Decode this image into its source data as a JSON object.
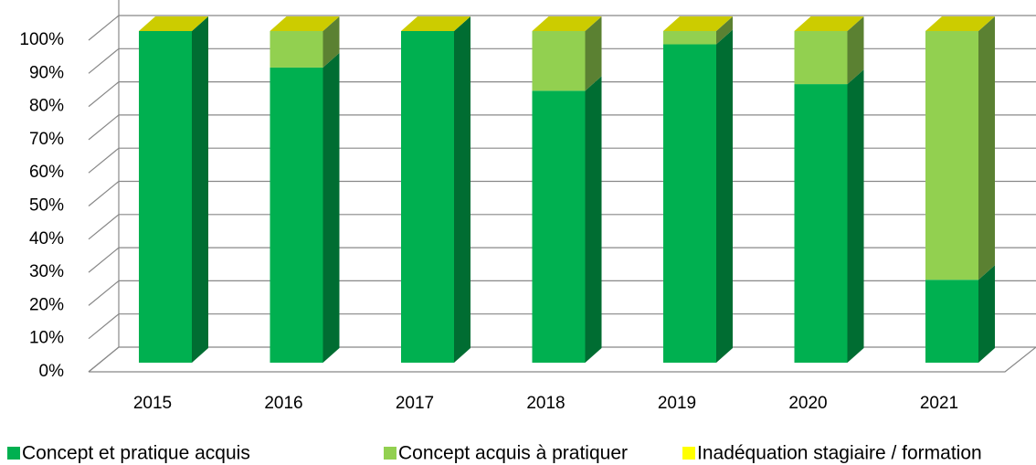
{
  "chart_data": {
    "type": "bar3d_stacked",
    "categories": [
      "2015",
      "2016",
      "2017",
      "2018",
      "2019",
      "2020",
      "2021"
    ],
    "series": [
      {
        "name": "Concept et pratique acquis",
        "color": "#00b050",
        "values": [
          100,
          89,
          100,
          82,
          96,
          84,
          25
        ]
      },
      {
        "name": "Concept acquis à pratiquer",
        "color": "#92d050",
        "values": [
          0,
          11,
          0,
          18,
          4,
          16,
          75
        ]
      },
      {
        "name": "Inadéquation stagiaire / formation",
        "color": "#ffff00",
        "values": [
          0,
          0,
          0,
          0,
          0,
          0,
          0
        ]
      }
    ],
    "ylim": [
      0,
      100
    ],
    "yticks": [
      {
        "value": 0,
        "label": "0%"
      },
      {
        "value": 10,
        "label": "10%"
      },
      {
        "value": 20,
        "label": "20%"
      },
      {
        "value": 30,
        "label": "30%"
      },
      {
        "value": 40,
        "label": "40%"
      },
      {
        "value": 50,
        "label": "50%"
      },
      {
        "value": 60,
        "label": "60%"
      },
      {
        "value": 70,
        "label": "70%"
      },
      {
        "value": 80,
        "label": "80%"
      },
      {
        "value": 90,
        "label": "90%"
      },
      {
        "value": 100,
        "label": "100%"
      }
    ],
    "grid": true,
    "legend": "bottom"
  }
}
